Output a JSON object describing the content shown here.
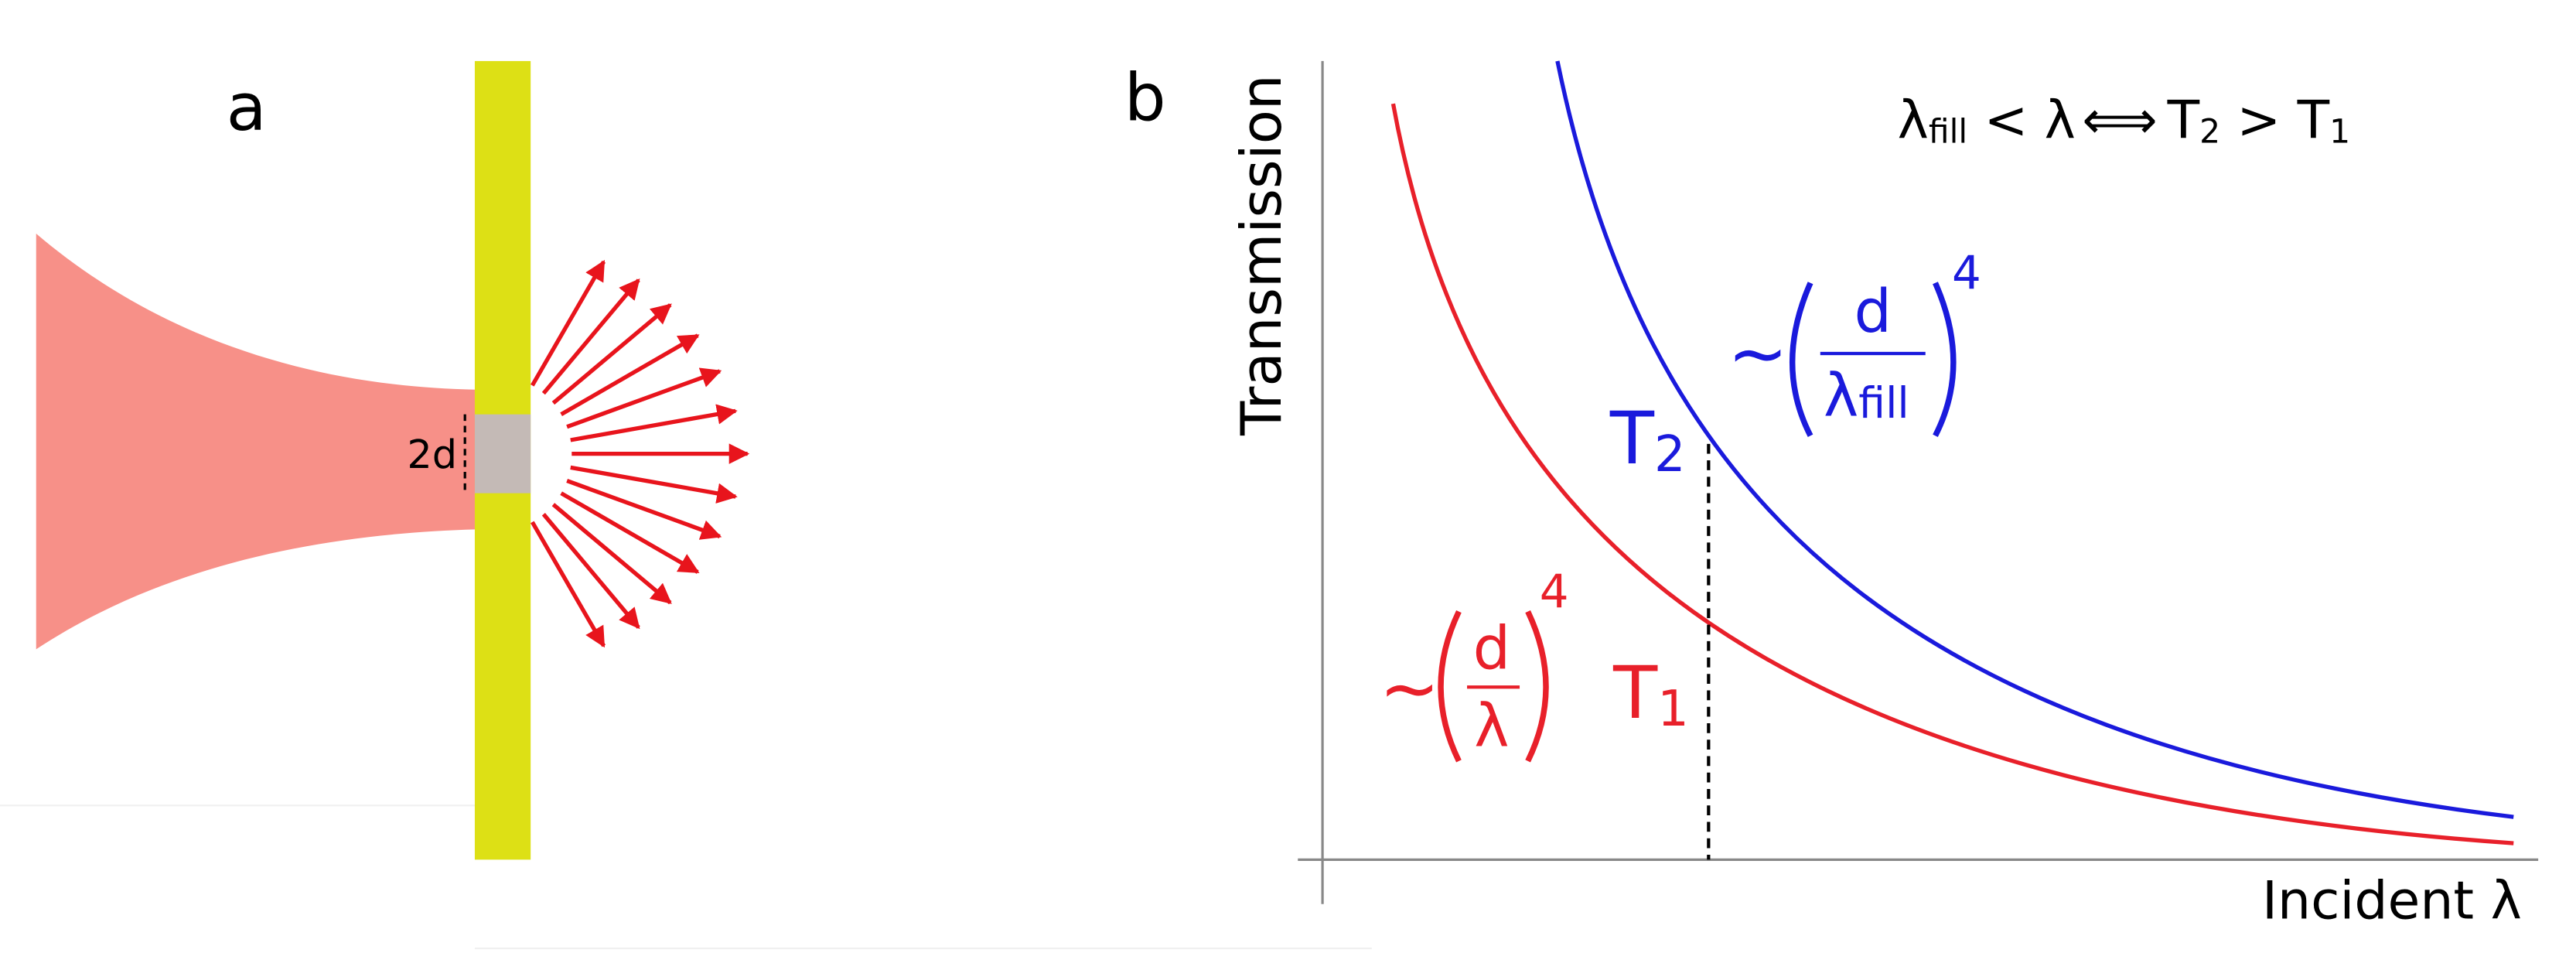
{
  "panel_a": {
    "label": "a",
    "aperture_label": "2d"
  },
  "panel_b": {
    "label": "b",
    "y_axis_label": "Transmission",
    "x_axis_label": "Incident λ",
    "relation": {
      "lhs_symbol": "λ",
      "lhs_sub": "fill",
      "lt": "<",
      "rhs_symbol": "λ",
      "arrow": "⟺",
      "t2": "T",
      "t2_sub": "2",
      "gt": ">",
      "t1": "T",
      "t1_sub": "1"
    },
    "curve_labels": [
      {
        "symbol": "T",
        "sub": "2"
      },
      {
        "symbol": "T",
        "sub": "1"
      }
    ],
    "formulas": [
      {
        "tilde": "~",
        "numerator": "d",
        "denominator": "λ",
        "denominator_sub": "fill",
        "exponent": "4"
      },
      {
        "tilde": "~",
        "numerator": "d",
        "denominator": "λ",
        "exponent": "4"
      }
    ]
  }
}
